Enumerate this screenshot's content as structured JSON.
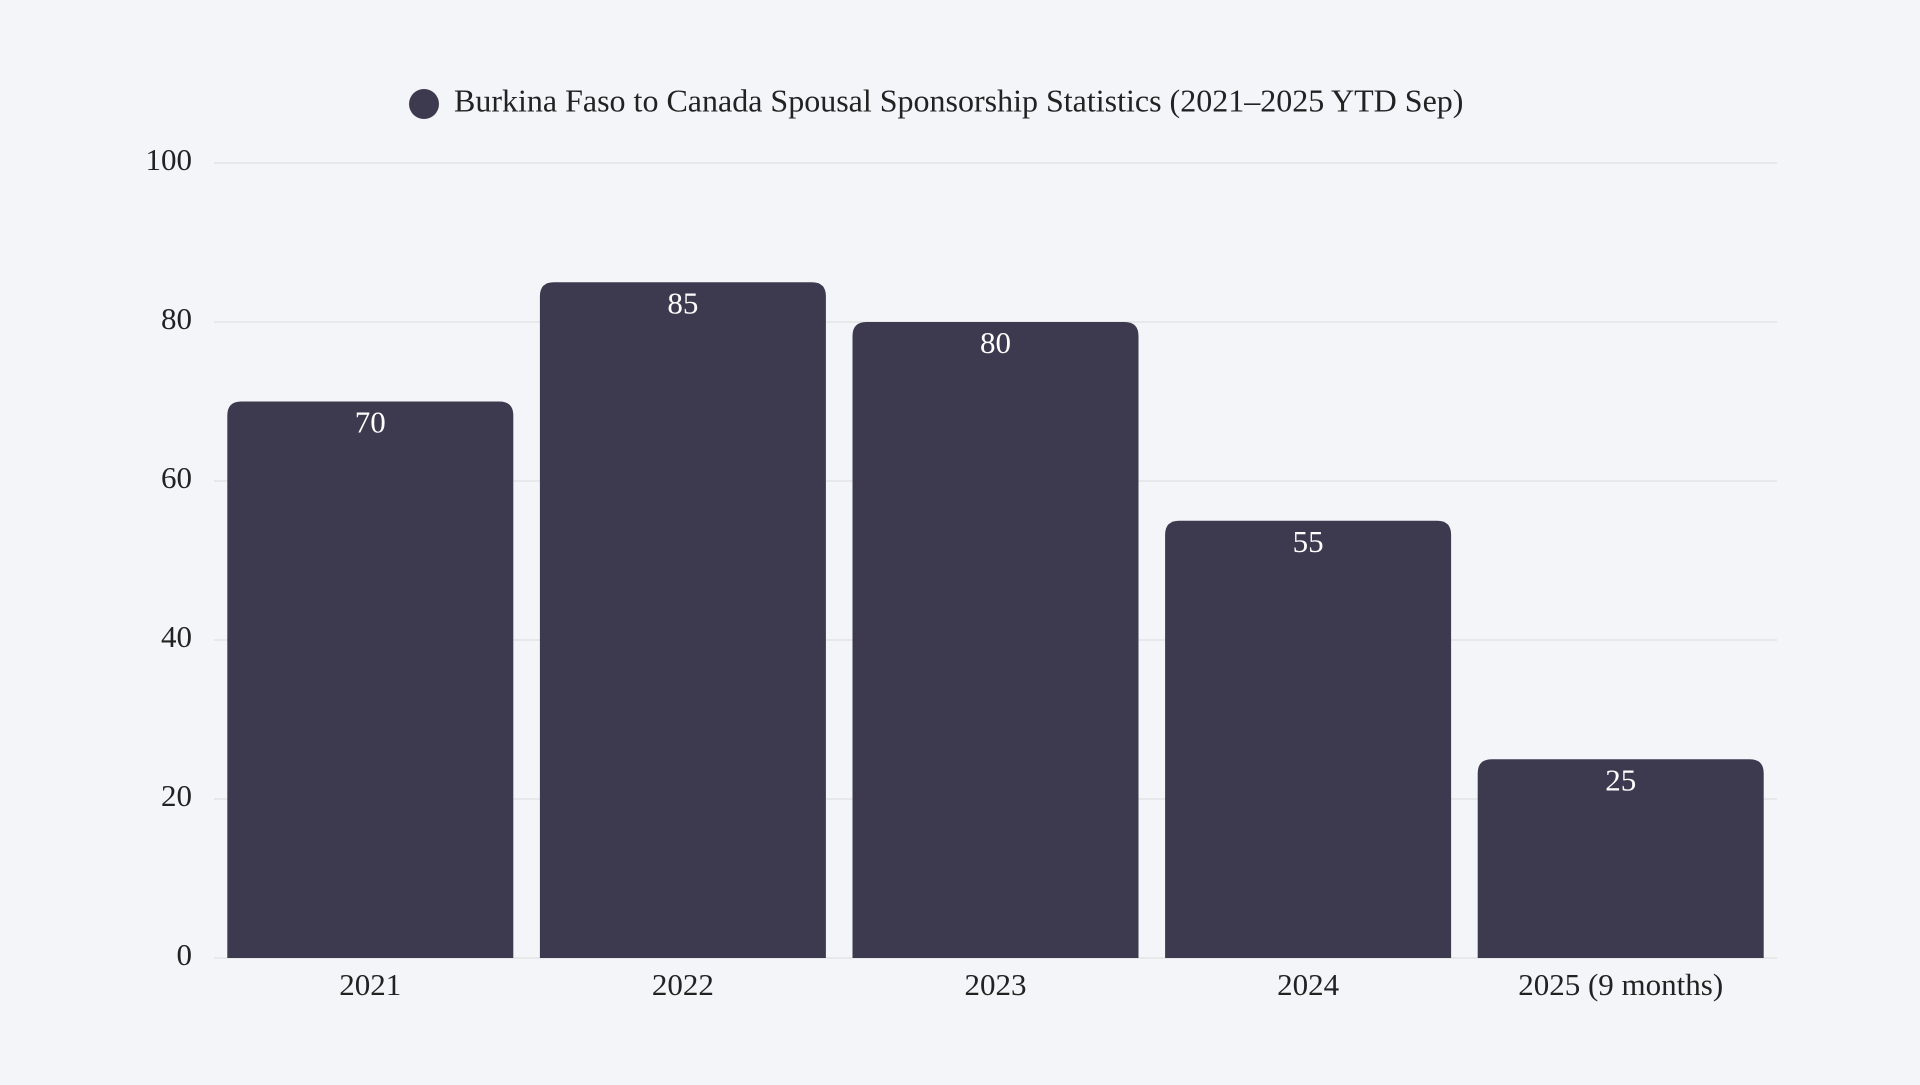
{
  "chart_data": {
    "type": "bar",
    "categories": [
      "2021",
      "2022",
      "2023",
      "2024",
      "2025 (9 months)"
    ],
    "series": [
      {
        "name": "Burkina Faso to Canada Spousal Sponsorship Statistics (2021–2025 YTD Sep)",
        "color": "#3d3a50",
        "values": [
          70,
          85,
          80,
          55,
          25
        ]
      }
    ],
    "ylim": [
      0,
      100
    ],
    "yticks": [
      0,
      20,
      40,
      60,
      80,
      100
    ],
    "grid": true,
    "legend": "top"
  }
}
